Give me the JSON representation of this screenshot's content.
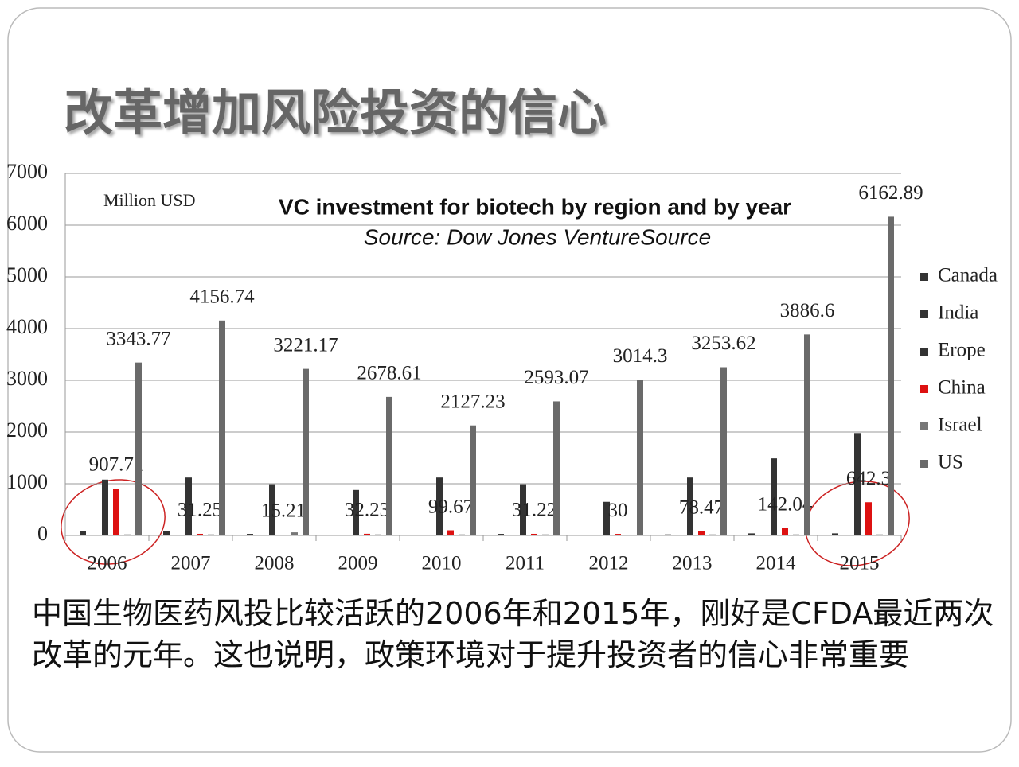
{
  "slide_title": "改革增加风险投资的信心",
  "chart_data": {
    "type": "bar",
    "title": "VC investment for biotech by region and by year",
    "subtitle": "Source: Dow Jones VentureSource",
    "unit_label": "Million USD",
    "categories": [
      "2006",
      "2007",
      "2008",
      "2009",
      "2010",
      "2011",
      "2012",
      "2013",
      "2014",
      "2015"
    ],
    "series": [
      {
        "name": "Canada",
        "color": "#333333",
        "values": [
          80,
          80,
          30,
          10,
          10,
          30,
          10,
          20,
          40,
          40
        ]
      },
      {
        "name": "India",
        "color": "#333333",
        "values": [
          5,
          5,
          5,
          5,
          5,
          5,
          5,
          5,
          5,
          5
        ]
      },
      {
        "name": "Erope",
        "color": "#333333",
        "values": [
          1080,
          1120,
          990,
          880,
          1120,
          990,
          650,
          1120,
          1490,
          1980
        ]
      },
      {
        "name": "China",
        "color": "#dd1111",
        "values": [
          907.71,
          31.25,
          15.21,
          32.23,
          99.67,
          31.22,
          30,
          78.47,
          142.04,
          642.3
        ]
      },
      {
        "name": "Israel",
        "color": "#777777",
        "values": [
          20,
          20,
          60,
          20,
          20,
          20,
          10,
          20,
          20,
          20
        ]
      },
      {
        "name": "US",
        "color": "#6a6a6a",
        "values": [
          3343.77,
          4156.74,
          3221.17,
          2678.61,
          2127.23,
          2593.07,
          3014.3,
          3253.62,
          3886.6,
          6162.89
        ]
      }
    ],
    "labeled_series": [
      3,
      5
    ],
    "ylim": [
      0,
      7000
    ],
    "yticks": [
      0,
      1000,
      2000,
      3000,
      4000,
      5000,
      6000,
      7000
    ],
    "grid": true,
    "legend": "right"
  },
  "body_text": "中国生物医药风投比较活跃的2006年和2015年，刚好是CFDA最近两次改革的元年。这也说明，政策环境对于提升投资者的信心非常重要"
}
